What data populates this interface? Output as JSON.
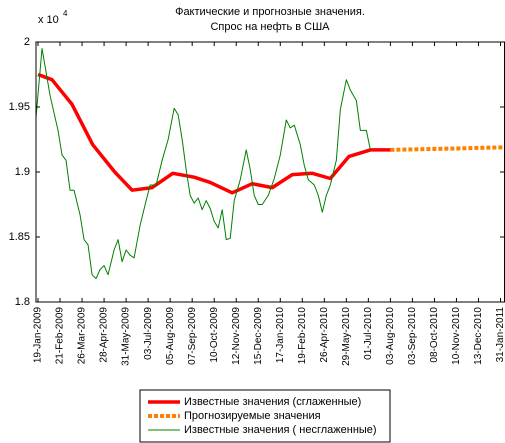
{
  "chart_data": {
    "type": "line",
    "title": [
      "Фактические и прогнозные значения.",
      "Спрос на нефть в США"
    ],
    "y_multiplier": {
      "base": "x 10",
      "exponent": "4"
    },
    "xlim": [
      "2009-01-16",
      "2011-02-10"
    ],
    "ylim": [
      1.8,
      2
    ],
    "yticks": [
      1.8,
      1.85,
      1.9,
      1.95,
      2
    ],
    "xticks": [
      {
        "value": "2009-01-19",
        "label": "19-Jan-2009"
      },
      {
        "value": "2009-02-21",
        "label": "21-Feb-2009"
      },
      {
        "value": "2009-03-26",
        "label": "26-Mar-2009"
      },
      {
        "value": "2009-04-28",
        "label": "28-Apr-2009"
      },
      {
        "value": "2009-05-31",
        "label": "31-May-2009"
      },
      {
        "value": "2009-07-03",
        "label": "03-Jul-2009"
      },
      {
        "value": "2009-08-05",
        "label": "05-Aug-2009"
      },
      {
        "value": "2009-09-07",
        "label": "07-Sep-2009"
      },
      {
        "value": "2009-10-10",
        "label": "10-Oct-2009"
      },
      {
        "value": "2009-11-12",
        "label": "12-Nov-2009"
      },
      {
        "value": "2009-12-15",
        "label": "15-Dec-2009"
      },
      {
        "value": "2010-01-17",
        "label": "17-Jan-2010"
      },
      {
        "value": "2010-02-19",
        "label": "19-Feb-2010"
      },
      {
        "value": "2010-04-26",
        "label": "26-Apr-2010"
      },
      {
        "value": "2010-05-29",
        "label": "29-May-2010"
      },
      {
        "value": "2010-07-01",
        "label": "01-Jul-2010"
      },
      {
        "value": "2010-08-03",
        "label": "03-Aug-2010"
      },
      {
        "value": "2010-09-03",
        "label": "03-Sep-2010"
      },
      {
        "value": "2010-10-08",
        "label": "08-Oct-2010"
      },
      {
        "value": "2010-11-10",
        "label": "10-Nov-2010"
      },
      {
        "value": "2010-12-13",
        "label": "13-Dec-2010"
      },
      {
        "value": "2011-01-31",
        "label": "31-Jan-2011"
      }
    ],
    "grid": false,
    "legend_position": "bottom",
    "series": [
      {
        "name": "Известные значения (сглаженные)",
        "color": "#ff0000",
        "linewidth": 3.5,
        "linestyle": "solid",
        "x": [
          "2009-01-19",
          "2009-02-09",
          "2009-03-11",
          "2009-04-11",
          "2009-05-14",
          "2009-06-09",
          "2009-07-09",
          "2009-08-09",
          "2009-09-10",
          "2009-10-04",
          "2009-11-06",
          "2009-12-06",
          "2010-01-05",
          "2010-02-04",
          "2010-03-21",
          "2010-05-05",
          "2010-06-02",
          "2010-07-04",
          "2010-08-03"
        ],
        "values": [
          1.975,
          1.971,
          1.952,
          1.921,
          1.9,
          1.886,
          1.888,
          1.899,
          1.896,
          1.892,
          1.884,
          1.891,
          1.888,
          1.898,
          1.899,
          1.895,
          1.912,
          1.917,
          1.917
        ]
      },
      {
        "name": "Прогнозируемые значения",
        "color": "#ff8000",
        "linewidth": 4,
        "linestyle": "dashed",
        "x": [
          "2010-08-03",
          "2010-10-31",
          "2011-02-10"
        ],
        "values": [
          1.917,
          1.918,
          1.919
        ]
      },
      {
        "name": "Известные значения ( несглаженные)",
        "color": "#008000",
        "linewidth": 1,
        "linestyle": "solid",
        "x": [
          "2009-01-16",
          "2009-01-25",
          "2009-02-06",
          "2009-02-18",
          "2009-02-24",
          "2009-03-02",
          "2009-03-08",
          "2009-03-14",
          "2009-03-23",
          "2009-03-29",
          "2009-04-04",
          "2009-04-10",
          "2009-04-16",
          "2009-04-22",
          "2009-04-28",
          "2009-05-04",
          "2009-05-13",
          "2009-05-19",
          "2009-05-25",
          "2009-05-31",
          "2009-06-06",
          "2009-06-12",
          "2009-06-21",
          "2009-06-30",
          "2009-07-06",
          "2009-07-15",
          "2009-07-24",
          "2009-08-02",
          "2009-08-11",
          "2009-08-17",
          "2009-08-23",
          "2009-08-29",
          "2009-09-04",
          "2009-09-10",
          "2009-09-16",
          "2009-09-22",
          "2009-09-28",
          "2009-10-04",
          "2009-10-10",
          "2009-10-16",
          "2009-10-22",
          "2009-10-28",
          "2009-11-03",
          "2009-11-09",
          "2009-11-18",
          "2009-11-27",
          "2009-12-03",
          "2009-12-09",
          "2009-12-15",
          "2009-12-21",
          "2009-12-30",
          "2010-01-08",
          "2010-01-17",
          "2010-01-26",
          "2010-02-01",
          "2010-02-07",
          "2010-02-16",
          "2010-02-25",
          "2010-03-09",
          "2010-03-27",
          "2010-04-08",
          "2010-04-20",
          "2010-04-29",
          "2010-05-05",
          "2010-05-14",
          "2010-05-20",
          "2010-05-29",
          "2010-06-04",
          "2010-06-13",
          "2010-06-19",
          "2010-06-28",
          "2010-07-04"
        ],
        "values": [
          1.942,
          1.995,
          1.959,
          1.932,
          1.913,
          1.909,
          1.886,
          1.886,
          1.867,
          1.848,
          1.844,
          1.821,
          1.818,
          1.825,
          1.828,
          1.821,
          1.84,
          1.848,
          1.831,
          1.84,
          1.836,
          1.834,
          1.859,
          1.878,
          1.89,
          1.89,
          1.909,
          1.925,
          1.949,
          1.944,
          1.925,
          1.902,
          1.882,
          1.876,
          1.88,
          1.871,
          1.878,
          1.872,
          1.862,
          1.857,
          1.871,
          1.848,
          1.849,
          1.878,
          1.894,
          1.917,
          1.902,
          1.882,
          1.875,
          1.875,
          1.882,
          1.895,
          1.913,
          1.94,
          1.934,
          1.936,
          1.921,
          1.905,
          1.894,
          1.89,
          1.882,
          1.869,
          1.882,
          1.89,
          1.909,
          1.948,
          1.971,
          1.963,
          1.955,
          1.932,
          1.932,
          1.917
        ]
      }
    ]
  }
}
